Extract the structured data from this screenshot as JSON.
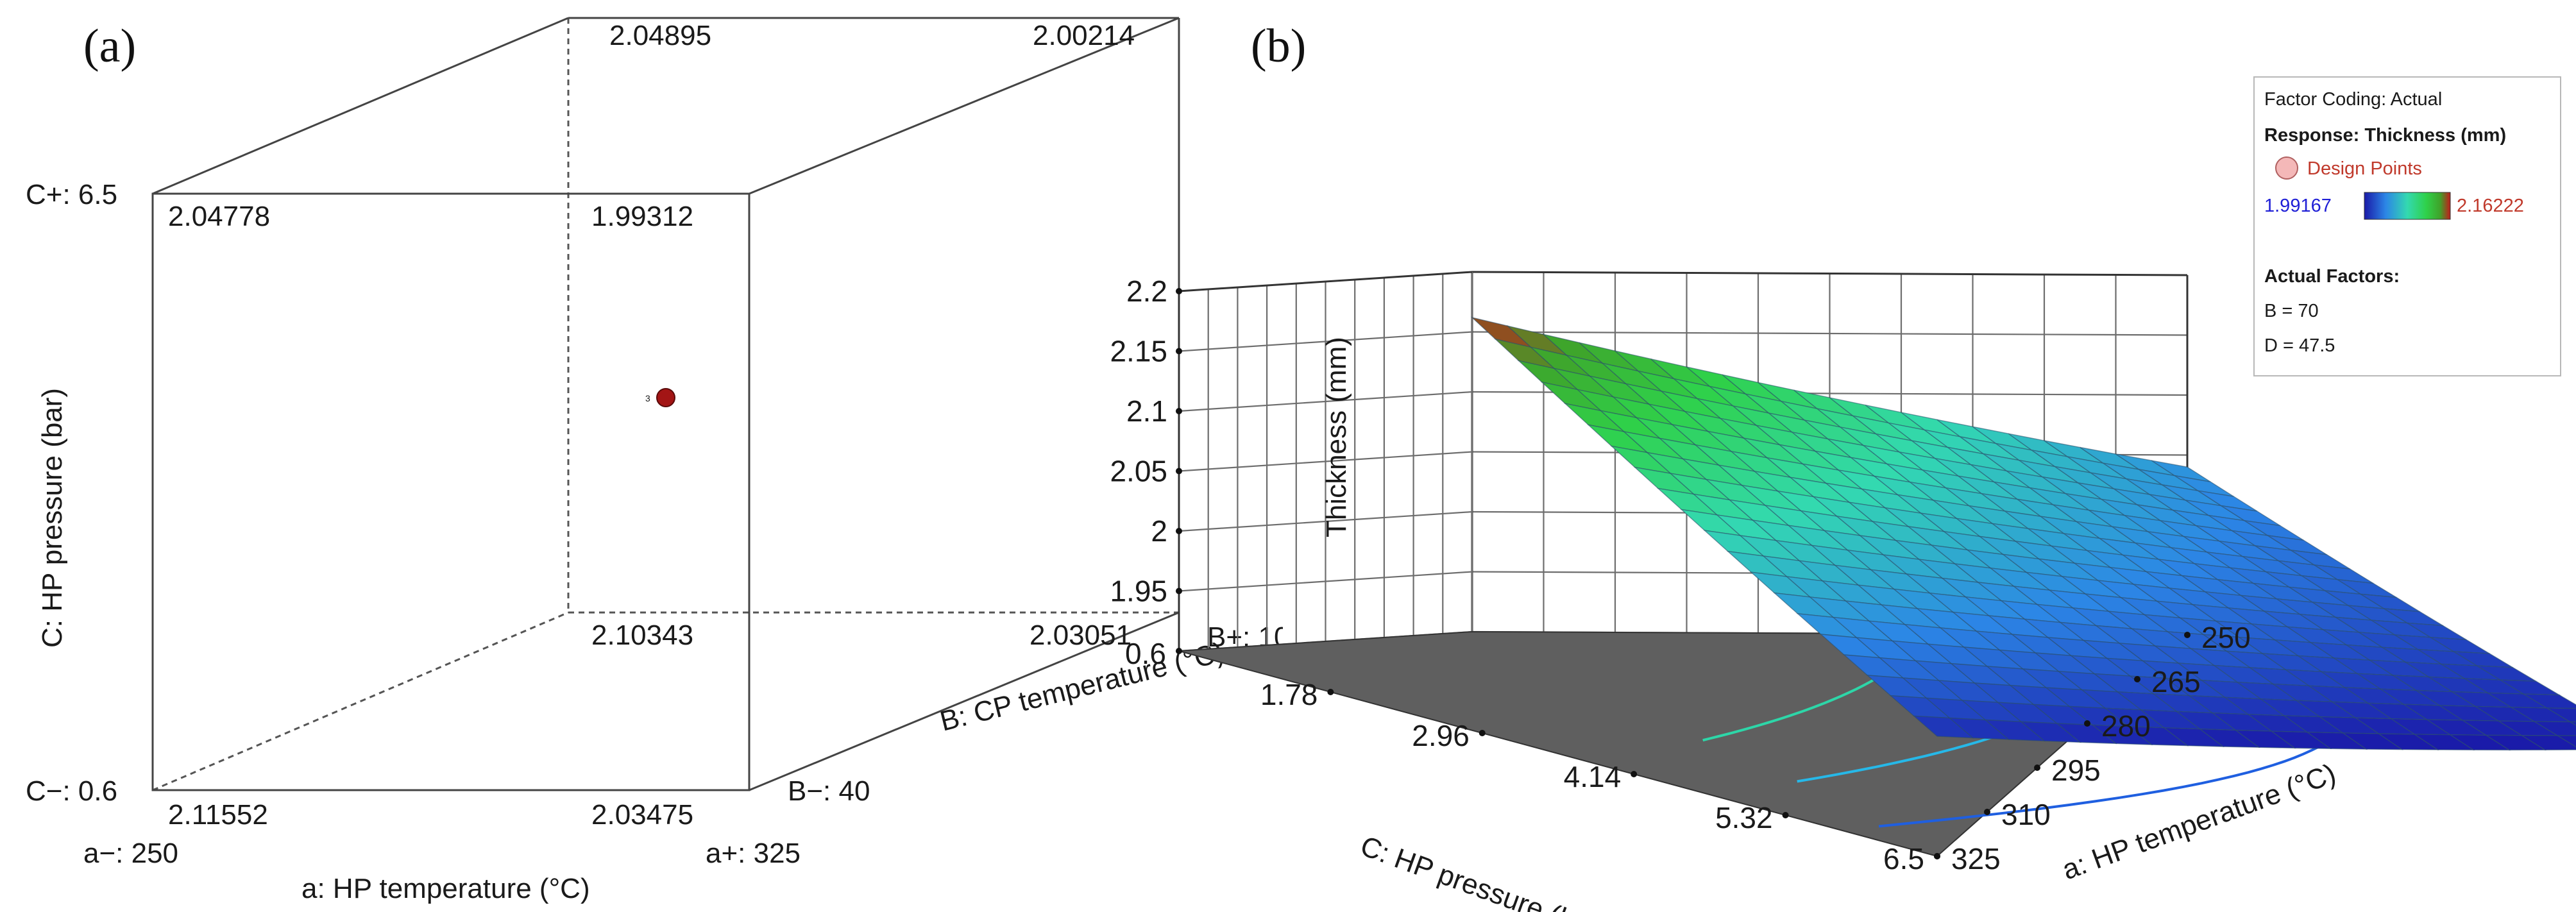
{
  "panel_a": {
    "label": "(a)",
    "corner_values": {
      "front_bottom_left": "2.11552",
      "front_bottom_right": "2.03475",
      "front_top_left": "2.04778",
      "front_top_right": "1.99312",
      "back_bottom_left": "2.10343",
      "back_bottom_right": "2.03051",
      "back_top_left": "2.04895",
      "back_top_right": "2.00214"
    },
    "center_point": {
      "label": "3",
      "color": "#a31515"
    },
    "labels": {
      "c_plus": "C+: 6.5",
      "c_minus": "C−: 0.6",
      "a_minus": "a−: 250",
      "a_plus": "a+: 325",
      "b_minus": "B−: 40",
      "b_plus": "B+: 100",
      "axis_a": "a: HP temperature (°C)",
      "axis_b": "B: CP temperature (°C)",
      "axis_c": "C: HP pressure (bar)"
    }
  },
  "panel_b": {
    "label": "(b)",
    "legend": {
      "factor_coding": "Factor Coding: Actual",
      "response": "Response: Thickness (mm)",
      "design_points": "Design Points",
      "min": "1.99167",
      "max": "2.16222",
      "actual_factors_title": "Actual Factors:",
      "factor_b": "B = 70",
      "factor_d": "D = 47.5",
      "text_color_min": "#1f1fd6",
      "text_color_max": "#c0392b",
      "design_point_color": "#f4b8b8"
    }
  },
  "chart_data": [
    {
      "type": "cube",
      "panel": "(a)",
      "factors": {
        "a": {
          "name": "a: HP temperature (°C)",
          "low": 250,
          "high": 325
        },
        "B": {
          "name": "B: CP temperature (°C)",
          "low": 40,
          "high": 100
        },
        "C": {
          "name": "C: HP pressure (bar)",
          "low": 0.6,
          "high": 6.5
        }
      },
      "corners": [
        {
          "a": 250,
          "B": 40,
          "C": 0.6,
          "value": 2.11552
        },
        {
          "a": 325,
          "B": 40,
          "C": 0.6,
          "value": 2.03475
        },
        {
          "a": 250,
          "B": 40,
          "C": 6.5,
          "value": 2.04778
        },
        {
          "a": 325,
          "B": 40,
          "C": 6.5,
          "value": 1.99312
        },
        {
          "a": 250,
          "B": 100,
          "C": 0.6,
          "value": 2.10343
        },
        {
          "a": 325,
          "B": 100,
          "C": 0.6,
          "value": 2.03051
        },
        {
          "a": 250,
          "B": 100,
          "C": 6.5,
          "value": 2.04895
        },
        {
          "a": 325,
          "B": 100,
          "C": 6.5,
          "value": 2.00214
        }
      ],
      "center_points": 3
    },
    {
      "type": "surface3d",
      "panel": "(b)",
      "xlabel": "a: HP temperature (°C)",
      "ylabel": "C: HP pressure (bar)",
      "zlabel": "Thickness (mm)",
      "x_ticks": [
        250,
        265,
        280,
        295,
        310,
        325
      ],
      "y_ticks": [
        0.6,
        1.78,
        2.96,
        4.14,
        5.32,
        6.5
      ],
      "z_ticks": [
        1.95,
        2,
        2.05,
        2.1,
        2.15,
        2.2
      ],
      "zlim": [
        1.9,
        2.2
      ],
      "surface_corners": [
        {
          "x": 250,
          "y": 0.6,
          "z": 2.162
        },
        {
          "x": 325,
          "y": 0.6,
          "z": 2.04
        },
        {
          "x": 250,
          "y": 6.5,
          "z": 2.0
        },
        {
          "x": 325,
          "y": 6.5,
          "z": 1.992
        }
      ],
      "color_range": [
        1.99167,
        2.16222
      ],
      "contour_levels": [
        2.02,
        2.05,
        2.08
      ],
      "held_factors": {
        "B": 70,
        "D": 47.5
      }
    }
  ]
}
